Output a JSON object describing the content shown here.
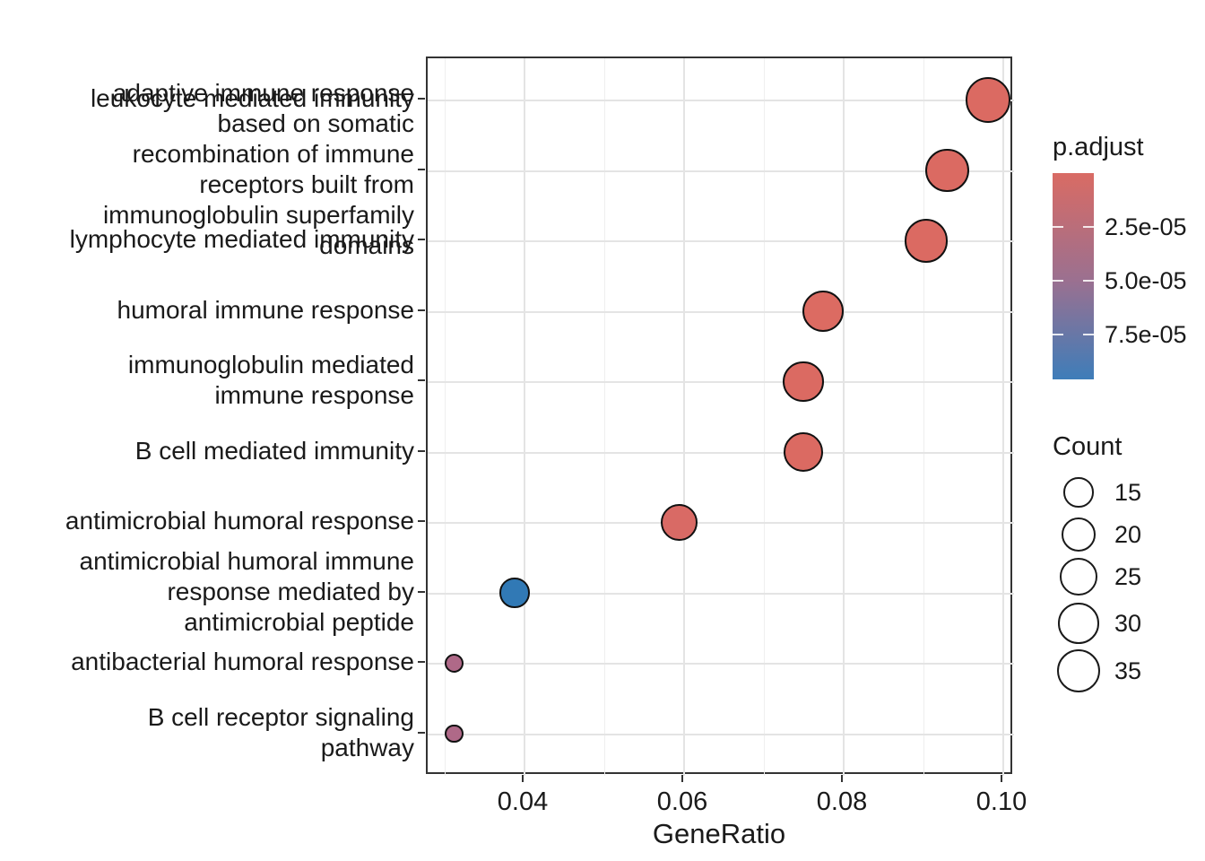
{
  "chart_data": {
    "type": "scatter",
    "subtype": "enrichment-dotplot",
    "title": "",
    "xlabel": "GeneRatio",
    "ylabel": "",
    "xlim": [
      0.0279,
      0.1015
    ],
    "x_ticks": [
      0.04,
      0.06,
      0.08,
      0.1
    ],
    "x_tick_labels": [
      "0.04",
      "0.06",
      "0.08",
      "0.10"
    ],
    "x_minor_step": 0.01,
    "x_minor_start": 0.03,
    "grid": true,
    "legend_position": "right",
    "categories": [
      "leukocyte mediated immunity",
      "adaptive immune response based on somatic recombination of immune receptors built from immunoglobulin superfamily domains",
      "lymphocyte mediated immunity",
      "humoral immune response",
      "immunoglobulin mediated immune response",
      "B cell mediated immunity",
      "antimicrobial humoral response",
      "antimicrobial humoral immune response mediated by antimicrobial peptide",
      "antibacterial humoral response",
      "B cell receptor signaling pathway"
    ],
    "category_wrapped_lines": [
      [
        "leukocyte mediated immunity"
      ],
      [
        "adaptive immune response",
        "based on somatic",
        "recombination of immune",
        "receptors built from",
        "immunoglobulin superfamily",
        "domains"
      ],
      [
        "lymphocyte mediated immunity"
      ],
      [
        "humoral immune response"
      ],
      [
        "immunoglobulin mediated",
        "immune response"
      ],
      [
        "B cell mediated immunity"
      ],
      [
        "antimicrobial humoral response"
      ],
      [
        "antimicrobial humoral immune",
        "response mediated by",
        "antimicrobial peptide"
      ],
      [
        "antibacterial humoral response"
      ],
      [
        "B cell receptor signaling",
        "pathway"
      ]
    ],
    "points": [
      {
        "label": "leukocyte mediated immunity",
        "gene_ratio": 0.0981,
        "count": 37,
        "p_adjust": 2e-06,
        "color": "#db6a62"
      },
      {
        "label": "adaptive immune response based on somatic recombination of immune receptors built from immunoglobulin superfamily domains",
        "gene_ratio": 0.093,
        "count": 35,
        "p_adjust": 2e-06,
        "color": "#db6a62"
      },
      {
        "label": "lymphocyte mediated immunity",
        "gene_ratio": 0.0904,
        "count": 34,
        "p_adjust": 3e-06,
        "color": "#db6a62"
      },
      {
        "label": "humoral immune response",
        "gene_ratio": 0.0775,
        "count": 31,
        "p_adjust": 4e-06,
        "color": "#dc6b62"
      },
      {
        "label": "immunoglobulin mediated immune response",
        "gene_ratio": 0.075,
        "count": 30,
        "p_adjust": 4e-06,
        "color": "#db6a62"
      },
      {
        "label": "B cell mediated immunity",
        "gene_ratio": 0.075,
        "count": 28,
        "p_adjust": 5e-06,
        "color": "#db6a62"
      },
      {
        "label": "antimicrobial humoral response",
        "gene_ratio": 0.0594,
        "count": 24,
        "p_adjust": 6e-06,
        "color": "#d96a65"
      },
      {
        "label": "antimicrobial humoral immune response mediated by antimicrobial peptide",
        "gene_ratio": 0.0388,
        "count": 15,
        "p_adjust": 9e-05,
        "color": "#3179b5"
      },
      {
        "label": "antibacterial humoral response",
        "gene_ratio": 0.0312,
        "count": 5,
        "p_adjust": 3.5e-05,
        "color": "#af6988"
      },
      {
        "label": "B cell receptor signaling pathway",
        "gene_ratio": 0.0312,
        "count": 5,
        "p_adjust": 3.5e-05,
        "color": "#af6988"
      }
    ],
    "legend_padjust": {
      "title": "p.adjust",
      "range": [
        0,
        9.6e-05
      ],
      "ticks": [
        {
          "label": "2.5e-05",
          "value": 2.5e-05
        },
        {
          "label": "5.0e-05",
          "value": 5e-05
        },
        {
          "label": "7.5e-05",
          "value": 7.5e-05
        }
      ],
      "top_color": "#d96b64",
      "mid_color": "#9b7090",
      "bottom_color": "#3e7db9"
    },
    "legend_count": {
      "title": "Count",
      "items": [
        {
          "label": "15",
          "value": 15
        },
        {
          "label": "20",
          "value": 20
        },
        {
          "label": "25",
          "value": 25
        },
        {
          "label": "30",
          "value": 30
        },
        {
          "label": "35",
          "value": 35
        }
      ]
    }
  }
}
